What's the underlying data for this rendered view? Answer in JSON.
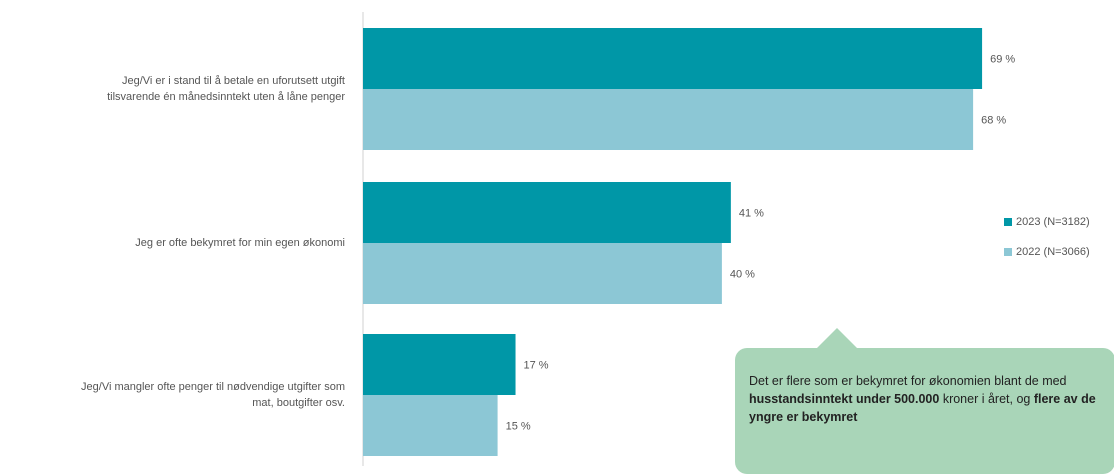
{
  "colors": {
    "series_2023": "#0097a7",
    "series_2022": "#8cc7d5",
    "callout_bg": "#a9d5b8"
  },
  "chart_data": {
    "type": "bar",
    "orientation": "horizontal",
    "categories": [
      [
        "Jeg/Vi er i stand til å betale en uforutsett utgift",
        "tilsvarende én månedsinntekt uten å låne penger"
      ],
      [
        "Jeg er ofte bekymret for min egen økonomi"
      ],
      [
        "Jeg/Vi mangler ofte penger til nødvendige utgifter som",
        "mat, boutgifter osv."
      ]
    ],
    "series": [
      {
        "name": "2023 (N=3182)",
        "values": [
          69,
          41,
          17
        ],
        "labels": [
          "69 %",
          "41 %",
          "17 %"
        ]
      },
      {
        "name": "2022 (N=3066)",
        "values": [
          68,
          40,
          15
        ],
        "labels": [
          "68 %",
          "40 %",
          "15 %"
        ]
      }
    ],
    "xlim": [
      0,
      72
    ],
    "unit": "%",
    "grid": false,
    "legend_position": "right"
  },
  "callout": {
    "parts": [
      {
        "text": "Det er flere som er bekymret for økonomien ",
        "bold": false
      },
      {
        "text": "blant de med ",
        "bold": false
      },
      {
        "text": "husstandsinntekt under 500.000",
        "bold": true
      },
      {
        "text": " kroner i året, og ",
        "bold": false
      },
      {
        "text": "flere av de yngre er bekymret",
        "bold": true
      }
    ]
  }
}
